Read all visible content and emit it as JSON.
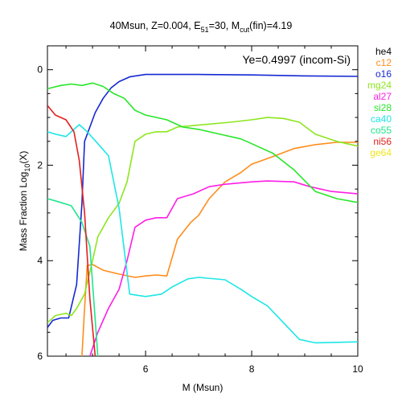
{
  "chart_data": {
    "type": "line",
    "title": {
      "prefix": "40Msun, Z=0.004, E",
      "e_sub": "51",
      "mid": "=30, M",
      "m_sub": "cut",
      "suffix": "(fin)=4.19"
    },
    "xlabel": "M (Msun)",
    "ylabel": {
      "main": "Mass Fraction Log",
      "sub": "10",
      "end": "(X)"
    },
    "annotation": "Ye=0.4997 (incom-Si)",
    "xlim": [
      4.15,
      10.0
    ],
    "ylim": [
      -6,
      0.5
    ],
    "x_ticks": [
      6,
      8,
      10
    ],
    "y_ticks": [
      0,
      -2,
      -4,
      -6
    ],
    "x_tick_labels": [
      "6",
      "8",
      "10"
    ],
    "y_tick_labels": [
      "0",
      "2",
      "4",
      "6"
    ],
    "grid": false,
    "legend_position": "right-outside",
    "series": [
      {
        "name": "he4",
        "color": "#000000",
        "points": []
      },
      {
        "name": "c12",
        "color": "#ff8c1a",
        "points": [
          [
            4.8,
            -6.0
          ],
          [
            4.85,
            -5.0
          ],
          [
            4.9,
            -4.1
          ],
          [
            5.0,
            -4.08
          ],
          [
            5.2,
            -4.2
          ],
          [
            5.5,
            -4.28
          ],
          [
            5.8,
            -4.35
          ],
          [
            6.0,
            -4.32
          ],
          [
            6.2,
            -4.3
          ],
          [
            6.4,
            -4.32
          ],
          [
            6.6,
            -3.55
          ],
          [
            6.85,
            -3.2
          ],
          [
            7.0,
            -3.05
          ],
          [
            7.2,
            -2.7
          ],
          [
            7.5,
            -2.35
          ],
          [
            7.8,
            -2.15
          ],
          [
            8.0,
            -1.98
          ],
          [
            8.4,
            -1.82
          ],
          [
            8.8,
            -1.65
          ],
          [
            9.2,
            -1.57
          ],
          [
            9.6,
            -1.52
          ],
          [
            10.0,
            -1.52
          ]
        ]
      },
      {
        "name": "o16",
        "color": "#1428d2",
        "points": [
          [
            4.15,
            -5.4
          ],
          [
            4.25,
            -5.25
          ],
          [
            4.4,
            -5.2
          ],
          [
            4.55,
            -5.2
          ],
          [
            4.7,
            -4.5
          ],
          [
            4.8,
            -2.8
          ],
          [
            4.85,
            -1.5
          ],
          [
            4.95,
            -1.2
          ],
          [
            5.05,
            -0.9
          ],
          [
            5.2,
            -0.6
          ],
          [
            5.35,
            -0.38
          ],
          [
            5.5,
            -0.25
          ],
          [
            5.7,
            -0.15
          ],
          [
            6.0,
            -0.1
          ],
          [
            7.0,
            -0.1
          ],
          [
            8.0,
            -0.11
          ],
          [
            9.0,
            -0.13
          ],
          [
            10.0,
            -0.14
          ]
        ]
      },
      {
        "name": "mg24",
        "color": "#8ce61e",
        "points": [
          [
            4.15,
            -5.3
          ],
          [
            4.3,
            -5.15
          ],
          [
            4.5,
            -5.1
          ],
          [
            4.6,
            -5.15
          ],
          [
            4.7,
            -5.0
          ],
          [
            4.85,
            -4.7
          ],
          [
            5.0,
            -4.0
          ],
          [
            5.1,
            -3.5
          ],
          [
            5.3,
            -3.1
          ],
          [
            5.5,
            -2.8
          ],
          [
            5.65,
            -2.35
          ],
          [
            5.8,
            -1.5
          ],
          [
            6.0,
            -1.35
          ],
          [
            6.2,
            -1.3
          ],
          [
            6.4,
            -1.3
          ],
          [
            6.6,
            -1.2
          ],
          [
            7.0,
            -1.16
          ],
          [
            7.6,
            -1.1
          ],
          [
            8.0,
            -1.05
          ],
          [
            8.3,
            -1.0
          ],
          [
            8.6,
            -1.02
          ],
          [
            8.9,
            -1.1
          ],
          [
            9.2,
            -1.35
          ],
          [
            9.6,
            -1.5
          ],
          [
            10.0,
            -1.6
          ]
        ]
      },
      {
        "name": "al27",
        "color": "#ff1ee6",
        "points": [
          [
            4.95,
            -6.0
          ],
          [
            5.1,
            -5.5
          ],
          [
            5.3,
            -5.0
          ],
          [
            5.5,
            -4.6
          ],
          [
            5.65,
            -4.0
          ],
          [
            5.8,
            -3.3
          ],
          [
            6.0,
            -3.15
          ],
          [
            6.2,
            -3.1
          ],
          [
            6.4,
            -3.1
          ],
          [
            6.6,
            -2.7
          ],
          [
            6.9,
            -2.6
          ],
          [
            7.2,
            -2.45
          ],
          [
            7.5,
            -2.4
          ],
          [
            8.0,
            -2.35
          ],
          [
            8.3,
            -2.33
          ],
          [
            8.8,
            -2.35
          ],
          [
            9.1,
            -2.45
          ],
          [
            9.5,
            -2.55
          ],
          [
            10.0,
            -2.6
          ]
        ]
      },
      {
        "name": "si28",
        "color": "#28e628",
        "points": [
          [
            4.15,
            -0.4
          ],
          [
            4.4,
            -0.33
          ],
          [
            4.6,
            -0.3
          ],
          [
            4.8,
            -0.33
          ],
          [
            5.0,
            -0.28
          ],
          [
            5.2,
            -0.35
          ],
          [
            5.4,
            -0.5
          ],
          [
            5.6,
            -0.6
          ],
          [
            5.8,
            -0.85
          ],
          [
            6.0,
            -0.95
          ],
          [
            6.4,
            -1.05
          ],
          [
            6.7,
            -1.2
          ],
          [
            7.0,
            -1.25
          ],
          [
            7.4,
            -1.35
          ],
          [
            7.8,
            -1.45
          ],
          [
            8.0,
            -1.55
          ],
          [
            8.4,
            -1.75
          ],
          [
            8.8,
            -2.1
          ],
          [
            9.2,
            -2.55
          ],
          [
            9.6,
            -2.7
          ],
          [
            10.0,
            -2.78
          ]
        ]
      },
      {
        "name": "ca40",
        "color": "#1ee6e6",
        "points": [
          [
            4.15,
            -1.3
          ],
          [
            4.3,
            -1.35
          ],
          [
            4.5,
            -1.4
          ],
          [
            4.65,
            -1.25
          ],
          [
            4.75,
            -1.15
          ],
          [
            4.9,
            -1.3
          ],
          [
            5.1,
            -1.55
          ],
          [
            5.3,
            -1.8
          ],
          [
            5.5,
            -2.9
          ],
          [
            5.7,
            -4.7
          ],
          [
            6.0,
            -4.75
          ],
          [
            6.3,
            -4.7
          ],
          [
            6.5,
            -4.55
          ],
          [
            6.8,
            -4.38
          ],
          [
            7.0,
            -4.35
          ],
          [
            7.5,
            -4.4
          ],
          [
            7.8,
            -4.6
          ],
          [
            8.0,
            -4.75
          ],
          [
            8.3,
            -4.95
          ],
          [
            8.6,
            -5.3
          ],
          [
            8.9,
            -5.65
          ],
          [
            9.2,
            -5.72
          ],
          [
            10.0,
            -5.7
          ]
        ]
      },
      {
        "name": "co55",
        "color": "#1ee68c",
        "points": [
          [
            4.15,
            -2.7
          ],
          [
            4.4,
            -2.78
          ],
          [
            4.6,
            -2.85
          ],
          [
            4.8,
            -3.2
          ],
          [
            4.95,
            -3.7
          ],
          [
            5.1,
            -6.0
          ]
        ]
      },
      {
        "name": "ni56",
        "color": "#e61e1e",
        "points": [
          [
            4.15,
            -0.75
          ],
          [
            4.3,
            -0.95
          ],
          [
            4.5,
            -1.05
          ],
          [
            4.65,
            -1.3
          ],
          [
            4.75,
            -1.9
          ],
          [
            4.85,
            -3.0
          ],
          [
            4.95,
            -4.8
          ],
          [
            5.05,
            -6.0
          ]
        ]
      },
      {
        "name": "ge64",
        "color": "#f0e61e",
        "points": []
      }
    ]
  }
}
